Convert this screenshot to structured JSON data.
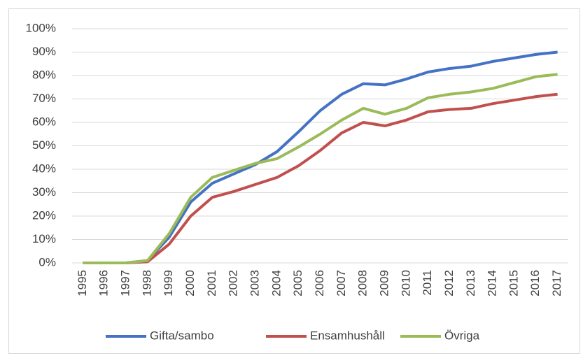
{
  "chart_data": {
    "type": "line",
    "categories": [
      "1995",
      "1996",
      "1997",
      "1998",
      "1999",
      "2000",
      "2001",
      "2002",
      "2003",
      "2004",
      "2005",
      "2006",
      "2007",
      "2008",
      "2009",
      "2010",
      "2011",
      "2012",
      "2013",
      "2014",
      "2015",
      "2016",
      "2017"
    ],
    "series": [
      {
        "name": "Gifta/sambo",
        "color": "#4472c4",
        "values": [
          0,
          0,
          0,
          1,
          11,
          26,
          34,
          38,
          42,
          47.5,
          56,
          65,
          72,
          76.5,
          76,
          78.5,
          81.5,
          83,
          84,
          86,
          87.5,
          89,
          90
        ]
      },
      {
        "name": "Ensamhushåll",
        "color": "#c0504d",
        "values": [
          0,
          0,
          0,
          0.5,
          8,
          20,
          28,
          30.5,
          33.5,
          36.5,
          41.5,
          48,
          55.5,
          60,
          58.5,
          61,
          64.5,
          65.5,
          66,
          68,
          69.5,
          71,
          72
        ]
      },
      {
        "name": "Övriga",
        "color": "#9bbb59",
        "values": [
          0,
          0,
          0,
          1,
          12.5,
          28,
          36.5,
          39.5,
          42.5,
          44.5,
          49.5,
          55,
          61,
          66,
          63.5,
          66,
          70.5,
          72,
          73,
          74.5,
          77,
          79.5,
          80.5
        ]
      }
    ],
    "ylim": [
      0,
      100
    ],
    "yticks": [
      {
        "value": 0,
        "label": "0%"
      },
      {
        "value": 10,
        "label": "10%"
      },
      {
        "value": 20,
        "label": "20%"
      },
      {
        "value": 30,
        "label": "30%"
      },
      {
        "value": 40,
        "label": "40%"
      },
      {
        "value": 50,
        "label": "50%"
      },
      {
        "value": 60,
        "label": "60%"
      },
      {
        "value": 70,
        "label": "70%"
      },
      {
        "value": 80,
        "label": "80%"
      },
      {
        "value": 90,
        "label": "90%"
      },
      {
        "value": 100,
        "label": "100%"
      }
    ],
    "grid": true,
    "legend": "bottom"
  }
}
